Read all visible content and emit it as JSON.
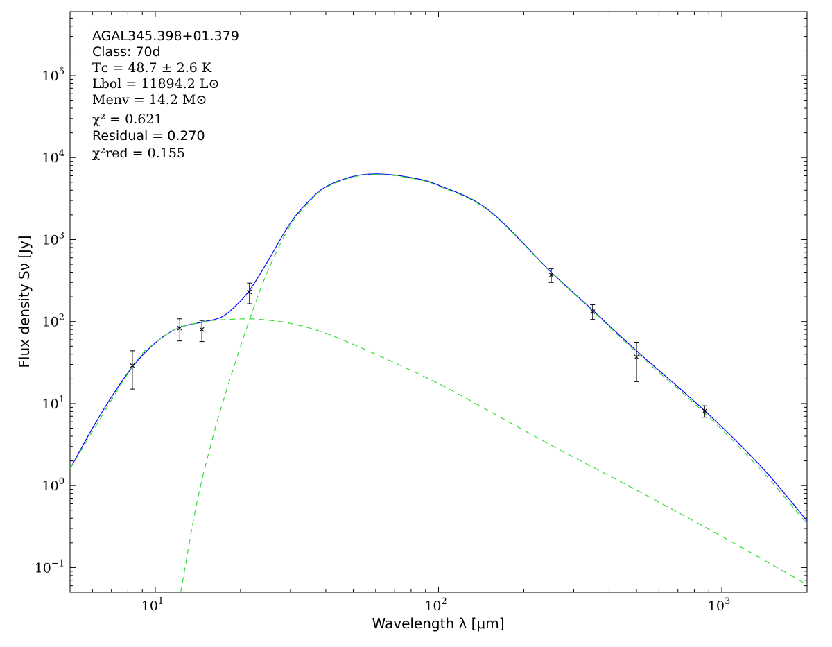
{
  "chart_data": {
    "type": "line",
    "xlabel": "Wavelength λ [μm]",
    "ylabel": "Flux density Sν [Jy]",
    "xscale": "log",
    "yscale": "log",
    "xlim": [
      5,
      2000
    ],
    "ylim": [
      0.05,
      600000
    ],
    "grid": false,
    "x_ticks": [
      {
        "value": 10,
        "base": "10",
        "exp": "1"
      },
      {
        "value": 100,
        "base": "10",
        "exp": "2"
      },
      {
        "value": 1000,
        "base": "10",
        "exp": "3"
      }
    ],
    "y_ticks": [
      {
        "value": 0.1,
        "base": "10",
        "exp": "−1"
      },
      {
        "value": 1,
        "base": "10",
        "exp": "0"
      },
      {
        "value": 10,
        "base": "10",
        "exp": "1"
      },
      {
        "value": 100,
        "base": "10",
        "exp": "2"
      },
      {
        "value": 1000,
        "base": "10",
        "exp": "3"
      },
      {
        "value": 10000,
        "base": "10",
        "exp": "4"
      },
      {
        "value": 100000,
        "base": "10",
        "exp": "5"
      }
    ],
    "annotation": {
      "source": "AGAL345.398+01.379",
      "class_line": "Class: 70d",
      "tc_line": "Tᴄ = 48.7 ± 2.6 K",
      "lbol_line": "Lbol = 11894.2 L⊙",
      "menv_line": "Menv = 14.2 M⊙",
      "chi2_line": "χ² = 0.621",
      "residual_line": "Residual = 0.270",
      "chi2red_line": "χ²red = 0.155"
    },
    "colors": {
      "total": "#0000ff",
      "components": "#33dd33",
      "points": "#000000"
    },
    "series": [
      {
        "style": "solid",
        "x": [
          5,
          6,
          7,
          8.3,
          10,
          12,
          14.5,
          17,
          19,
          21.5,
          25,
          30,
          35,
          40,
          50,
          62,
          80,
          100,
          150,
          250,
          350,
          500,
          880,
          1400,
          2000
        ],
        "y": [
          1.6,
          5,
          12,
          28,
          55,
          83,
          98,
          112,
          150,
          240,
          550,
          1600,
          3000,
          4400,
          5900,
          6300,
          5700,
          4600,
          2300,
          400,
          138,
          44,
          7.9,
          1.6,
          0.37
        ]
      },
      {
        "style": "dashed",
        "x": [
          5,
          8.3,
          10,
          12,
          14.5,
          17,
          21.5,
          25,
          30,
          40,
          62,
          100,
          150,
          250,
          500,
          1000,
          2000
        ],
        "y": [
          1.6,
          28,
          55,
          83,
          98,
          105,
          108,
          104,
          95,
          72,
          38,
          17.5,
          8.2,
          3.1,
          0.88,
          0.24,
          0.062
        ]
      },
      {
        "style": "dashed",
        "x": [
          12.3,
          14,
          16,
          18,
          21.5,
          25,
          30,
          35,
          40,
          50,
          62,
          80,
          100,
          150,
          250,
          350,
          500,
          880,
          1400,
          2000
        ],
        "y": [
          0.05,
          0.6,
          4,
          16,
          105,
          420,
          1500,
          2900,
          4300,
          5800,
          6200,
          5600,
          4500,
          2250,
          395,
          135,
          42,
          7.4,
          1.45,
          0.34
        ]
      }
    ],
    "points": [
      {
        "x": 8.3,
        "y": 29,
        "lo": 15,
        "hi": 44
      },
      {
        "x": 12.2,
        "y": 83,
        "lo": 58,
        "hi": 108
      },
      {
        "x": 14.6,
        "y": 80,
        "lo": 57,
        "hi": 103
      },
      {
        "x": 21.5,
        "y": 230,
        "lo": 165,
        "hi": 295
      },
      {
        "x": 250,
        "y": 370,
        "lo": 300,
        "hi": 440
      },
      {
        "x": 350,
        "y": 132,
        "lo": 106,
        "hi": 160
      },
      {
        "x": 500,
        "y": 37,
        "lo": 18.5,
        "hi": 56
      },
      {
        "x": 870,
        "y": 8.1,
        "lo": 6.8,
        "hi": 9.4
      }
    ]
  }
}
